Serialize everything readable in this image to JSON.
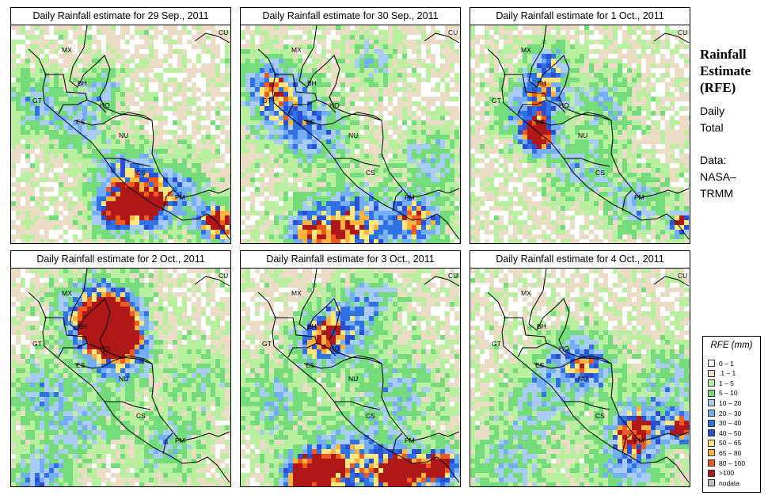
{
  "panels": [
    {
      "title": "Daily Rainfall estimate for  29 Sep., 2011",
      "seed": 11,
      "blobs": [
        [
          0.5,
          0.68,
          0.1,
          0.8
        ],
        [
          0.93,
          0.9,
          0.06,
          1.4
        ],
        [
          0.6,
          0.82,
          0.08,
          1.0
        ],
        [
          0.1,
          0.35,
          0.1,
          0.5
        ],
        [
          0.45,
          0.85,
          0.07,
          0.9
        ],
        [
          0.75,
          0.75,
          0.1,
          0.6
        ],
        [
          0.3,
          0.45,
          0.08,
          0.5
        ],
        [
          0.4,
          0.28,
          0.07,
          0.5
        ]
      ]
    },
    {
      "title": "Daily Rainfall estimate for  30 Sep., 2011",
      "seed": 23,
      "blobs": [
        [
          0.5,
          0.93,
          0.14,
          1.0
        ],
        [
          0.8,
          0.88,
          0.08,
          1.0
        ],
        [
          0.12,
          0.25,
          0.08,
          0.7
        ],
        [
          0.2,
          0.38,
          0.12,
          0.7
        ],
        [
          0.35,
          0.5,
          0.1,
          0.5
        ],
        [
          0.85,
          0.6,
          0.1,
          0.5
        ],
        [
          0.3,
          0.94,
          0.08,
          0.7
        ],
        [
          0.6,
          0.15,
          0.08,
          0.4
        ]
      ]
    },
    {
      "title": "Daily Rainfall estimate for  1 Oct., 2011",
      "seed": 37,
      "blobs": [
        [
          0.3,
          0.5,
          0.06,
          1.3
        ],
        [
          0.32,
          0.3,
          0.08,
          0.8
        ],
        [
          0.35,
          0.16,
          0.07,
          0.6
        ],
        [
          0.95,
          0.9,
          0.04,
          1.2
        ],
        [
          0.6,
          0.35,
          0.1,
          0.5
        ],
        [
          0.5,
          0.65,
          0.1,
          0.5
        ],
        [
          0.75,
          0.8,
          0.1,
          0.5
        ],
        [
          0.2,
          0.4,
          0.08,
          0.5
        ]
      ]
    },
    {
      "title": "Daily Rainfall estimate for  2 Oct., 2011",
      "seed": 53,
      "blobs": [
        [
          0.45,
          0.26,
          0.09,
          1.5
        ],
        [
          0.38,
          0.2,
          0.12,
          1.0
        ],
        [
          0.5,
          0.4,
          0.1,
          0.6
        ],
        [
          0.1,
          0.55,
          0.1,
          0.5
        ],
        [
          0.12,
          0.95,
          0.08,
          0.7
        ],
        [
          0.7,
          0.8,
          0.1,
          0.5
        ],
        [
          0.3,
          0.7,
          0.12,
          0.5
        ],
        [
          0.85,
          0.5,
          0.1,
          0.4
        ]
      ]
    },
    {
      "title": "Daily Rainfall estimate for  3 Oct., 2011",
      "seed": 71,
      "blobs": [
        [
          0.72,
          0.94,
          0.08,
          1.5
        ],
        [
          0.9,
          0.9,
          0.06,
          1.4
        ],
        [
          0.35,
          0.92,
          0.08,
          1.0
        ],
        [
          0.5,
          0.88,
          0.12,
          0.8
        ],
        [
          0.45,
          0.25,
          0.1,
          0.7
        ],
        [
          0.35,
          0.32,
          0.08,
          0.8
        ],
        [
          0.7,
          0.55,
          0.14,
          0.5
        ],
        [
          0.15,
          0.6,
          0.12,
          0.5
        ],
        [
          0.25,
          0.95,
          0.07,
          0.8
        ],
        [
          0.6,
          0.12,
          0.08,
          0.5
        ]
      ]
    },
    {
      "title": "Daily Rainfall estimate for  4 Oct., 2011",
      "seed": 89,
      "blobs": [
        [
          0.75,
          0.72,
          0.08,
          1.0
        ],
        [
          0.95,
          0.72,
          0.05,
          1.2
        ],
        [
          0.45,
          0.4,
          0.1,
          0.6
        ],
        [
          0.55,
          0.45,
          0.08,
          0.5
        ],
        [
          0.3,
          0.6,
          0.12,
          0.5
        ],
        [
          0.7,
          0.88,
          0.12,
          0.6
        ],
        [
          0.15,
          0.9,
          0.12,
          0.5
        ],
        [
          0.9,
          0.5,
          0.1,
          0.5
        ]
      ]
    }
  ],
  "country_labels": [
    "MX",
    "BH",
    "GT",
    "HO",
    "ES",
    "NU",
    "CS",
    "PM",
    "CU"
  ],
  "side": {
    "title_lines": [
      "Rainfall",
      "Estimate",
      "(RFE)"
    ],
    "subtitle_lines": [
      "Daily",
      "Total"
    ],
    "data_lines": [
      "Data:",
      "NASA–",
      "TRMM"
    ]
  },
  "legend": {
    "title": "RFE (mm)",
    "items": [
      {
        "label": "0 – 1",
        "color": "#ffffff"
      },
      {
        "label": ".1 – 1",
        "color": "#eadcc5"
      },
      {
        "label": "1 – 5",
        "color": "#b8f0a0"
      },
      {
        "label": "5 – 10",
        "color": "#74dc7a"
      },
      {
        "label": "10 – 20",
        "color": "#a8ccf4"
      },
      {
        "label": "20 – 30",
        "color": "#74aef4"
      },
      {
        "label": "30 – 40",
        "color": "#2f72e6"
      },
      {
        "label": "40 – 50",
        "color": "#2a4fd0"
      },
      {
        "label": "50 – 65",
        "color": "#fde880"
      },
      {
        "label": "65 – 80",
        "color": "#fcb340"
      },
      {
        "label": "80 – 100",
        "color": "#f05a1e"
      },
      {
        "label": ">100",
        "color": "#b01818"
      },
      {
        "label": "nodata",
        "color": "#c0c0c0"
      }
    ]
  }
}
